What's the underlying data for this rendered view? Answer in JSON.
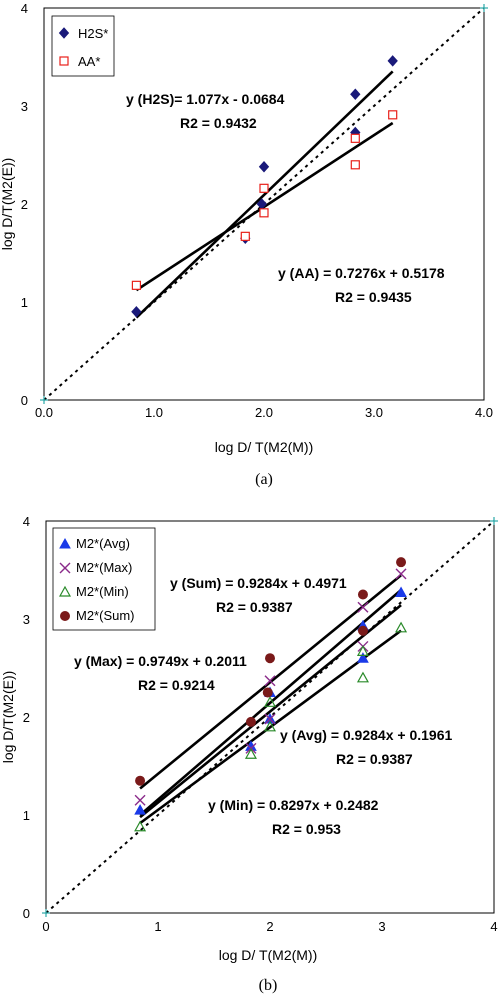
{
  "chart_data": [
    {
      "type": "scatter",
      "caption": "(a)",
      "xlabel": "log D/ T(M2(M))",
      "ylabel": "log D/T(M2(E))",
      "xlim": [
        0,
        4
      ],
      "ylim": [
        0,
        4
      ],
      "x_ticks": [
        "0.0",
        "1.0",
        "2.0",
        "3.0",
        "4.0"
      ],
      "y_ticks": [
        "0",
        "1",
        "2",
        "3",
        "4"
      ],
      "legend_position": "top-left",
      "reference_line": {
        "style": "dotted",
        "from": [
          0,
          0
        ],
        "to": [
          4,
          4
        ]
      },
      "series": [
        {
          "name": "H2S*",
          "marker": "filled-diamond",
          "color": "#1a1a7a",
          "points": [
            [
              0.84,
              0.9
            ],
            [
              1.83,
              1.65
            ],
            [
              1.98,
              2.0
            ],
            [
              2.0,
              2.38
            ],
            [
              2.83,
              3.12
            ],
            [
              2.83,
              2.73
            ],
            [
              3.17,
              3.46
            ]
          ],
          "fit": {
            "x": [
              0.84,
              3.17
            ],
            "equation": "y (H2S)= 1.077x -  0.0684",
            "r2_label": "R",
            "r2_value": "2 = 0.9432"
          }
        },
        {
          "name": "AA*",
          "marker": "open-square",
          "color": "#e8201a",
          "points": [
            [
              0.84,
              1.17
            ],
            [
              1.83,
              1.67
            ],
            [
              2.0,
              1.91
            ],
            [
              2.0,
              2.16
            ],
            [
              2.83,
              2.4
            ],
            [
              2.83,
              2.67
            ],
            [
              3.17,
              2.91
            ]
          ],
          "fit": {
            "x": [
              0.84,
              3.17
            ],
            "equation": "y (AA) = 0.7276x + 0.5178",
            "r2_label": "R",
            "r2_value": "2 = 0.9435"
          }
        }
      ]
    },
    {
      "type": "scatter",
      "caption": "(b)",
      "xlabel": "log D/ T(M2(M))",
      "ylabel": "log D/T(M2(E))",
      "xlim": [
        0,
        4
      ],
      "ylim": [
        0,
        4
      ],
      "x_ticks": [
        "0",
        "1",
        "2",
        "3",
        "4"
      ],
      "y_ticks": [
        "0",
        "1",
        "2",
        "3",
        "4"
      ],
      "legend_position": "top-left",
      "reference_line": {
        "style": "dotted",
        "from": [
          0,
          0
        ],
        "to": [
          4,
          4
        ]
      },
      "series": [
        {
          "name": "M2*(Avg)",
          "marker": "filled-triangle",
          "color": "#1a3ae8",
          "points": [
            [
              0.84,
              1.05
            ],
            [
              1.83,
              1.7
            ],
            [
              2.0,
              1.98
            ],
            [
              2.0,
              2.25
            ],
            [
              2.83,
              2.6
            ],
            [
              2.83,
              2.93
            ],
            [
              3.17,
              3.27
            ]
          ],
          "fit": {
            "x": [
              0.84,
              3.17
            ],
            "equation": "y (Avg) = 0.9284x + 0.1961",
            "r2_label": "R2",
            "r2_value": " = 0.9387"
          }
        },
        {
          "name": "M2*(Max)",
          "marker": "cross",
          "color": "#8a2a8a",
          "points": [
            [
              0.84,
              1.15
            ],
            [
              1.83,
              1.68
            ],
            [
              2.0,
              1.98
            ],
            [
              2.0,
              2.37
            ],
            [
              2.83,
              2.72
            ],
            [
              2.83,
              3.12
            ],
            [
              3.17,
              3.46
            ]
          ],
          "fit": {
            "x": [
              0.84,
              3.17
            ],
            "equation": "y (Max) = 0.9749x + 0.2011",
            "r2_label": "R",
            "r2_value": "2 = 0.9214"
          }
        },
        {
          "name": "M2*(Min)",
          "marker": "open-triangle",
          "color": "#2a8a2a",
          "points": [
            [
              0.84,
              0.88
            ],
            [
              1.83,
              1.62
            ],
            [
              2.0,
              1.9
            ],
            [
              2.0,
              2.15
            ],
            [
              2.83,
              2.4
            ],
            [
              2.83,
              2.67
            ],
            [
              3.17,
              2.91
            ]
          ],
          "fit": {
            "x": [
              0.84,
              3.17
            ],
            "equation": "y (Min) = 0.8297x + 0.2482",
            "r2_label": "R",
            "r2_value": "2 = 0.953"
          }
        },
        {
          "name": "M2*(Sum)",
          "marker": "filled-circle",
          "color": "#7a1a1a",
          "points": [
            [
              0.84,
              1.35
            ],
            [
              1.83,
              1.95
            ],
            [
              1.98,
              2.25
            ],
            [
              2.0,
              2.6
            ],
            [
              2.83,
              2.88
            ],
            [
              2.83,
              3.25
            ],
            [
              3.17,
              3.58
            ]
          ],
          "fit": {
            "x": [
              0.84,
              3.17
            ],
            "equation": "y (Sum) = 0.9284x + 0.4971",
            "r2_label": "R2",
            "r2_value": " = 0.9387"
          }
        }
      ]
    }
  ]
}
